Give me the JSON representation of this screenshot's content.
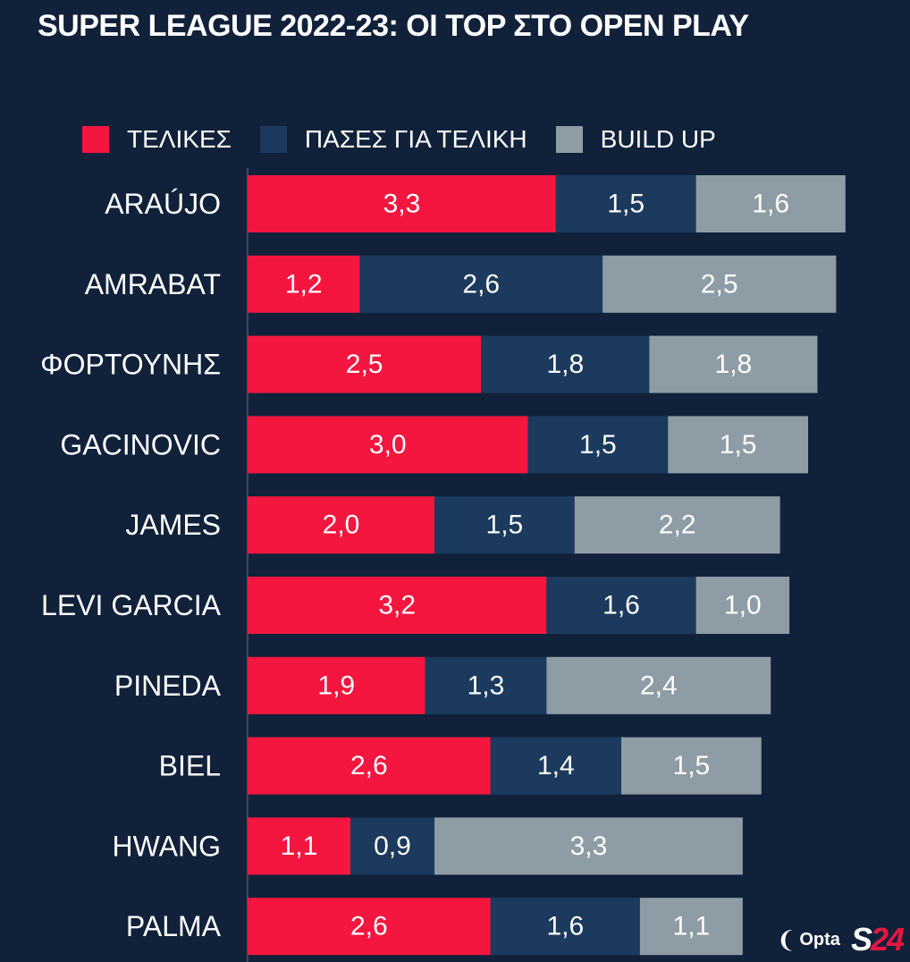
{
  "title": "SUPER LEAGUE 2022-23: ΟΙ TOP ΣΤΟ OPEN PLAY",
  "colors": {
    "background": "#11213a",
    "shots": "#f5163f",
    "passes": "#1b3a5e",
    "buildup": "#8e9ca6",
    "axis": "#6b7788"
  },
  "chart_data": {
    "type": "bar",
    "orientation": "horizontal",
    "stacked": true,
    "title": "SUPER LEAGUE 2022-23: ΟΙ TOP ΣΤΟ OPEN PLAY",
    "categories": [
      "ARAÚJO",
      "AMRABAT",
      "ΦΟΡΤΟΥΝΗΣ",
      "GACINOVIC",
      "JAMES",
      "LEVI GARCIA",
      "PINEDA",
      "BIEL",
      "HWANG",
      "PALMA"
    ],
    "series": [
      {
        "name": "ΤΕΛΙΚΕΣ",
        "color": "#f5163f",
        "values": [
          3.3,
          1.2,
          2.5,
          3.0,
          2.0,
          3.2,
          1.9,
          2.6,
          1.1,
          2.6
        ],
        "labels": [
          "3,3",
          "1,2",
          "2,5",
          "3,0",
          "2,0",
          "3,2",
          "1,9",
          "2,6",
          "1,1",
          "2,6"
        ]
      },
      {
        "name": "ΠΑΣΕΣ ΓΙΑ ΤΕΛΙΚΗ",
        "color": "#1b3a5e",
        "values": [
          1.5,
          2.6,
          1.8,
          1.5,
          1.5,
          1.6,
          1.3,
          1.4,
          0.9,
          1.6
        ],
        "labels": [
          "1,5",
          "2,6",
          "1,8",
          "1,5",
          "1,5",
          "1,6",
          "1,3",
          "1,4",
          "0,9",
          "1,6"
        ]
      },
      {
        "name": "BUILD UP",
        "color": "#8e9ca6",
        "values": [
          1.6,
          2.5,
          1.8,
          1.5,
          2.2,
          1.0,
          2.4,
          1.5,
          3.3,
          1.1
        ],
        "labels": [
          "1,6",
          "2,5",
          "1,8",
          "1,5",
          "2,2",
          "1,0",
          "2,4",
          "1,5",
          "3,3",
          "1,1"
        ]
      }
    ],
    "legend_position": "top-left",
    "grid": false
  },
  "footer": {
    "opta_text": "Opta",
    "s24_letter": "S",
    "s24_number": "24"
  }
}
